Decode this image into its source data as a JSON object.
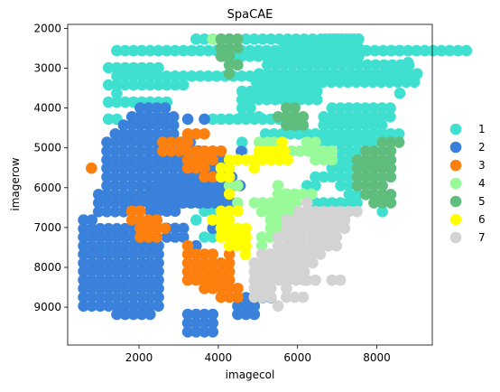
{
  "chart_data": {
    "type": "scatter",
    "title": "SpaCAE",
    "xlabel": "imagecol",
    "ylabel": "imagerow",
    "xlim": [
      200,
      9400
    ],
    "ylim": [
      9950,
      1900
    ],
    "y_inverted": true,
    "xticks": [
      2000,
      4000,
      6000,
      8000
    ],
    "yticks": [
      2000,
      3000,
      4000,
      5000,
      6000,
      7000,
      8000,
      9000
    ],
    "grid": false,
    "legend_position": "right",
    "x_spacing": 210,
    "y_spacing": 215,
    "series": [
      {
        "name": "1",
        "color": "#40e0d0",
        "spots": [
          [
            3440,
            2270,
            20
          ],
          [
            1440,
            2560,
            43
          ],
          [
            1230,
            2990,
            7
          ],
          [
            1440,
            3200,
            21
          ],
          [
            1230,
            3420,
            10
          ],
          [
            1230,
            3850,
            6
          ],
          [
            1440,
            3630,
            1
          ],
          [
            1440,
            3850,
            7
          ],
          [
            1230,
            4280,
            2
          ],
          [
            3860,
            4280,
            11
          ],
          [
            2810,
            4500,
            1
          ],
          [
            6700,
            2270,
            5
          ],
          [
            5650,
            2490,
            10
          ],
          [
            5650,
            2710,
            10
          ],
          [
            4170,
            2700,
            15
          ],
          [
            5240,
            2920,
            18
          ],
          [
            5030,
            3140,
            20
          ],
          [
            4960,
            3350,
            20
          ],
          [
            8360,
            2560,
            2
          ],
          [
            8360,
            2990,
            3
          ],
          [
            8580,
            3200,
            2
          ],
          [
            8580,
            3630,
            1
          ],
          [
            8790,
            2860,
            1
          ],
          [
            4600,
            3580,
            10
          ],
          [
            4600,
            3790,
            10
          ],
          [
            4600,
            4000,
            2
          ],
          [
            4600,
            4220,
            3
          ],
          [
            6870,
            4000,
            8
          ],
          [
            6660,
            4220,
            9
          ],
          [
            6660,
            4430,
            8
          ],
          [
            6450,
            4650,
            10
          ],
          [
            6240,
            4860,
            2
          ],
          [
            5190,
            4650,
            12
          ],
          [
            6030,
            4650,
            2
          ],
          [
            6660,
            4860,
            2
          ],
          [
            4600,
            4860,
            1
          ],
          [
            4600,
            5080,
            1
          ],
          [
            7930,
            4650,
            3
          ],
          [
            8140,
            4650,
            3
          ],
          [
            7090,
            4860,
            5
          ],
          [
            7090,
            5080,
            4
          ],
          [
            7090,
            5300,
            3
          ],
          [
            6870,
            5510,
            6
          ],
          [
            6450,
            5730,
            8
          ],
          [
            6240,
            5950,
            2
          ],
          [
            7090,
            5950,
            2
          ],
          [
            7300,
            6170,
            3
          ],
          [
            6240,
            6160,
            1
          ],
          [
            6450,
            6380,
            6
          ],
          [
            3860,
            6380,
            3
          ],
          [
            3650,
            6590,
            2
          ],
          [
            3860,
            6590,
            2
          ],
          [
            8140,
            6600,
            1
          ],
          [
            3440,
            6810,
            1
          ],
          [
            3650,
            7240,
            2
          ],
          [
            4910,
            8970,
            1
          ]
        ]
      },
      {
        "name": "2",
        "color": "#3a81db",
        "spots": [
          [
            2030,
            4000,
            4
          ],
          [
            1820,
            4220,
            6
          ],
          [
            1610,
            4430,
            7
          ],
          [
            1400,
            4650,
            8
          ],
          [
            1190,
            4860,
            11
          ],
          [
            1190,
            5080,
            12
          ],
          [
            1190,
            5300,
            14
          ],
          [
            1190,
            5510,
            15
          ],
          [
            1190,
            5730,
            16
          ],
          [
            1190,
            5950,
            17
          ],
          [
            980,
            6170,
            16
          ],
          [
            980,
            6380,
            17
          ],
          [
            980,
            6600,
            4
          ],
          [
            600,
            6810,
            2
          ],
          [
            600,
            7030,
            8
          ],
          [
            600,
            7240,
            8
          ],
          [
            600,
            7460,
            10
          ],
          [
            600,
            7670,
            10
          ],
          [
            600,
            7890,
            10
          ],
          [
            600,
            8100,
            10
          ],
          [
            600,
            8320,
            10
          ],
          [
            600,
            8530,
            10
          ],
          [
            600,
            8750,
            10
          ],
          [
            600,
            8970,
            10
          ],
          [
            1440,
            9180,
            5
          ],
          [
            3230,
            9180,
            4
          ],
          [
            3230,
            9400,
            4
          ],
          [
            3230,
            9620,
            4
          ],
          [
            2490,
            5950,
            8
          ],
          [
            2280,
            6160,
            10
          ],
          [
            2280,
            6380,
            10
          ],
          [
            2280,
            6590,
            4
          ],
          [
            3860,
            7020,
            3
          ],
          [
            2700,
            7020,
            3
          ],
          [
            2700,
            7240,
            3
          ],
          [
            3440,
            7460,
            1
          ],
          [
            4070,
            5300,
            1
          ],
          [
            4580,
            5090,
            1
          ],
          [
            4490,
            8760,
            5
          ],
          [
            4490,
            8970,
            3
          ],
          [
            4490,
            9180,
            3
          ],
          [
            3230,
            4280,
            1
          ],
          [
            3650,
            4280,
            1
          ]
        ]
      },
      {
        "name": "3",
        "color": "#fd7f0e",
        "spots": [
          [
            3230,
            4650,
            3
          ],
          [
            2600,
            4860,
            4
          ],
          [
            2600,
            5080,
            8
          ],
          [
            3230,
            5300,
            3
          ],
          [
            3650,
            5300,
            2
          ],
          [
            3230,
            5510,
            3
          ],
          [
            3650,
            5730,
            2
          ],
          [
            800,
            5510,
            1
          ],
          [
            1820,
            6590,
            2
          ],
          [
            1820,
            6810,
            4
          ],
          [
            2030,
            7020,
            4
          ],
          [
            2030,
            7240,
            3
          ],
          [
            3230,
            7460,
            1
          ],
          [
            3230,
            7670,
            4
          ],
          [
            4280,
            7670,
            1
          ],
          [
            3230,
            7890,
            6
          ],
          [
            3230,
            8110,
            6
          ],
          [
            3230,
            8320,
            6
          ],
          [
            3650,
            8530,
            5
          ],
          [
            4070,
            8750,
            3
          ],
          [
            4490,
            8530,
            1
          ]
        ]
      },
      {
        "name": "4",
        "color": "#98fa98",
        "spots": [
          [
            3860,
            2270,
            1
          ],
          [
            5030,
            4860,
            2
          ],
          [
            5400,
            4860,
            1
          ],
          [
            6240,
            4860,
            2
          ],
          [
            5850,
            5080,
            3
          ],
          [
            6450,
            5080,
            3
          ],
          [
            6450,
            5300,
            3
          ],
          [
            4280,
            5950,
            2
          ],
          [
            5510,
            5950,
            1
          ],
          [
            5510,
            6160,
            5
          ],
          [
            5720,
            6160,
            1
          ],
          [
            4490,
            6380,
            1
          ],
          [
            4910,
            6380,
            6
          ],
          [
            5100,
            6600,
            5
          ],
          [
            5320,
            6810,
            3
          ],
          [
            5320,
            7020,
            3
          ],
          [
            5100,
            7240,
            2
          ],
          [
            5100,
            7460,
            1
          ],
          [
            5720,
            6370,
            2
          ]
        ]
      },
      {
        "name": "5",
        "color": "#5fbe7e",
        "spots": [
          [
            4070,
            2270,
            3
          ],
          [
            4070,
            2490,
            3
          ],
          [
            4070,
            2700,
            2
          ],
          [
            4280,
            2920,
            2
          ],
          [
            4280,
            3140,
            1
          ],
          [
            5720,
            4000,
            2
          ],
          [
            5510,
            4220,
            2
          ],
          [
            5930,
            4220,
            2
          ],
          [
            5720,
            4430,
            2
          ],
          [
            6140,
            4430,
            1
          ],
          [
            8140,
            4860,
            3
          ],
          [
            7720,
            5080,
            4
          ],
          [
            7510,
            5300,
            5
          ],
          [
            7510,
            5510,
            5
          ],
          [
            7510,
            5730,
            5
          ],
          [
            7510,
            5950,
            4
          ],
          [
            7720,
            6170,
            4
          ],
          [
            7930,
            6380,
            2
          ],
          [
            8350,
            6380,
            1
          ]
        ]
      },
      {
        "name": "6",
        "color": "#ffff00",
        "spots": [
          [
            5610,
            4860,
            1
          ],
          [
            5030,
            5080,
            4
          ],
          [
            4280,
            5300,
            8
          ],
          [
            4070,
            5510,
            2
          ],
          [
            4910,
            5510,
            1
          ],
          [
            4070,
            5730,
            2
          ],
          [
            4280,
            6160,
            1
          ],
          [
            3860,
            6810,
            2
          ],
          [
            4280,
            6810,
            1
          ],
          [
            4070,
            6590,
            3
          ],
          [
            4070,
            7020,
            4
          ],
          [
            4070,
            7240,
            4
          ],
          [
            4280,
            7460,
            3
          ],
          [
            4690,
            7680,
            1
          ]
        ]
      },
      {
        "name": "7",
        "color": "#d3d3d3",
        "spots": [
          [
            6240,
            6380,
            1
          ],
          [
            6030,
            6600,
            8
          ],
          [
            5720,
            6810,
            8
          ],
          [
            5720,
            7020,
            8
          ],
          [
            5510,
            7240,
            8
          ],
          [
            5510,
            7460,
            8
          ],
          [
            5100,
            7670,
            8
          ],
          [
            4910,
            7890,
            8
          ],
          [
            4910,
            8110,
            7
          ],
          [
            4910,
            8320,
            7
          ],
          [
            4910,
            8530,
            3
          ],
          [
            5720,
            8530,
            1
          ],
          [
            5100,
            8750,
            1
          ],
          [
            5510,
            8970,
            1
          ],
          [
            4910,
            8750,
            3
          ],
          [
            5720,
            8750,
            3
          ],
          [
            6870,
            8320,
            2
          ],
          [
            6240,
            8320,
            2
          ]
        ]
      }
    ]
  }
}
